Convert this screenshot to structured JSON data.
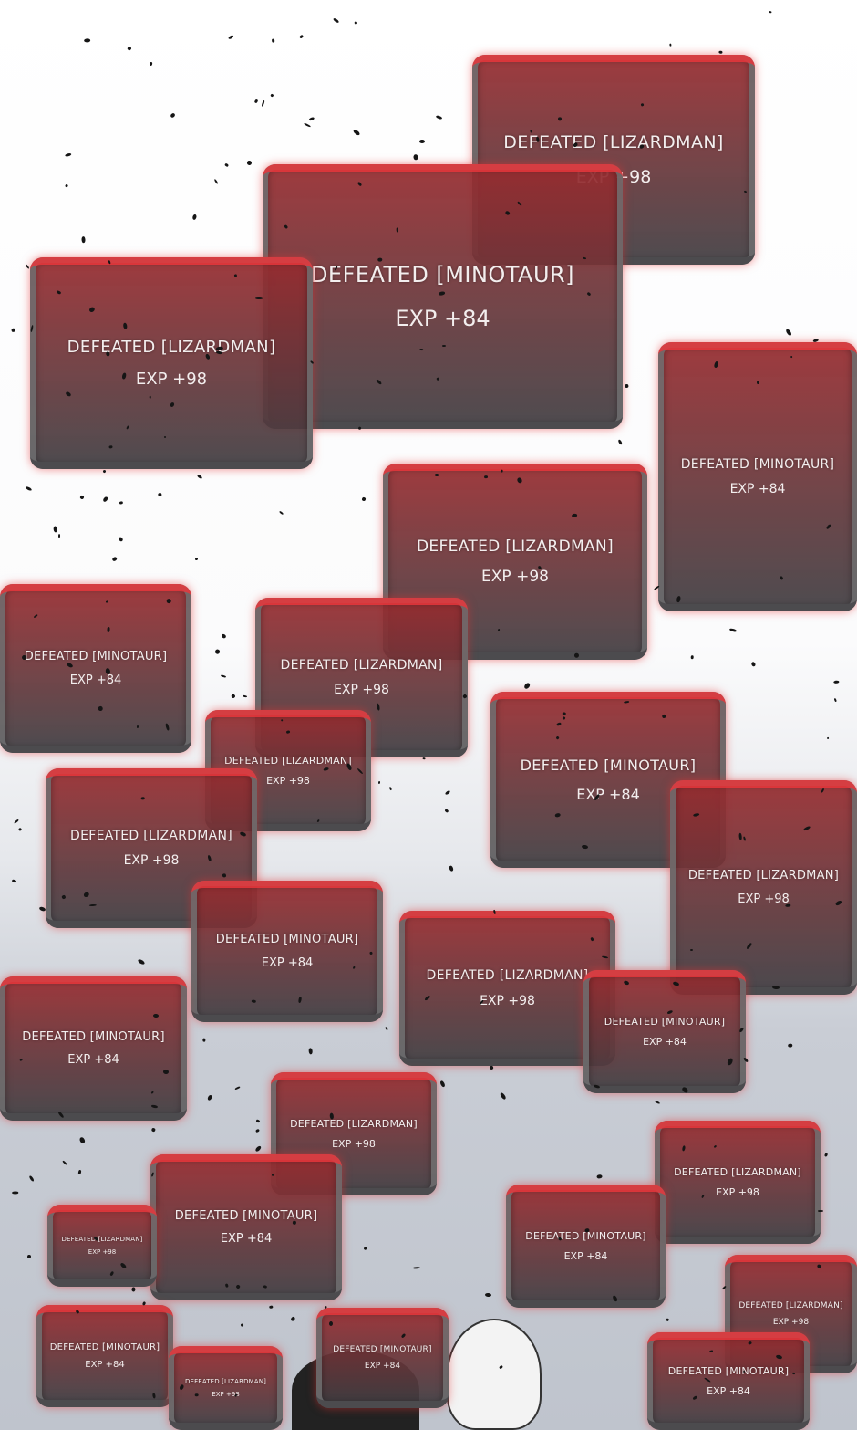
{
  "notifications": [
    {
      "title": "DEFEATED [LIZARDMAN]",
      "exp": "EXP +98"
    },
    {
      "title": "DEFEATED [MINOTAUR]",
      "exp": "EXP +84"
    },
    {
      "title": "DEFEATED [LIZARDMAN]",
      "exp": "EXP +98"
    },
    {
      "title": "DEFEATED [MINOTAUR]",
      "exp": "EXP +84"
    },
    {
      "title": "DEFEATED [LIZARDMAN]",
      "exp": "EXP +98"
    },
    {
      "title": "DEFEATED [MINOTAUR]",
      "exp": "EXP +84"
    },
    {
      "title": "DEFEATED [LIZARDMAN]",
      "exp": "EXP +98"
    },
    {
      "title": "DEFEATED [LIZARDMAN]",
      "exp": "EXP +98"
    },
    {
      "title": "DEFEATED [MINOTAUR]",
      "exp": "EXP +84"
    },
    {
      "title": "DEFEATED [LIZARDMAN]",
      "exp": "EXP +98"
    },
    {
      "title": "DEFEATED [LIZARDMAN]",
      "exp": "EXP +98"
    },
    {
      "title": "DEFEATED [MINOTAUR]",
      "exp": "EXP +84"
    },
    {
      "title": "DEFEATED [LIZARDMAN]",
      "exp": "EXP +98"
    },
    {
      "title": "DEFEATED [MINOTAUR]",
      "exp": "EXP +84"
    },
    {
      "title": "DEFEATED [MINOTAUR]",
      "exp": "EXP +84"
    },
    {
      "title": "DEFEATED [LIZARDMAN]",
      "exp": "EXP +98"
    },
    {
      "title": "DEFEATED [LIZARDMAN]",
      "exp": "EXP +98"
    },
    {
      "title": "DEFEATED [MINOTAUR]",
      "exp": "EXP +84"
    },
    {
      "title": "DEFEATED [LIZARDMAN]",
      "exp": "EXP +98"
    },
    {
      "title": "DEFEATED [MINOTAUR]",
      "exp": "EXP +84"
    },
    {
      "title": "DEFEATED [LIZARDMAN]",
      "exp": "EXP +98"
    },
    {
      "title": "DEFEATED [MINOTAUR]",
      "exp": "EXP +84"
    },
    {
      "title": "DEFEATED [MINOTAUR]",
      "exp": "EXP +84"
    },
    {
      "title": "DEFEATED [LIZARDMAN]",
      "exp": "EXP +98"
    },
    {
      "title": "DEFEATED [MINOTAUR]",
      "exp": "EXP +84"
    }
  ],
  "colors": {
    "box_top": "#962c30",
    "box_bottom": "#423e42",
    "glow": "#e8373c"
  }
}
